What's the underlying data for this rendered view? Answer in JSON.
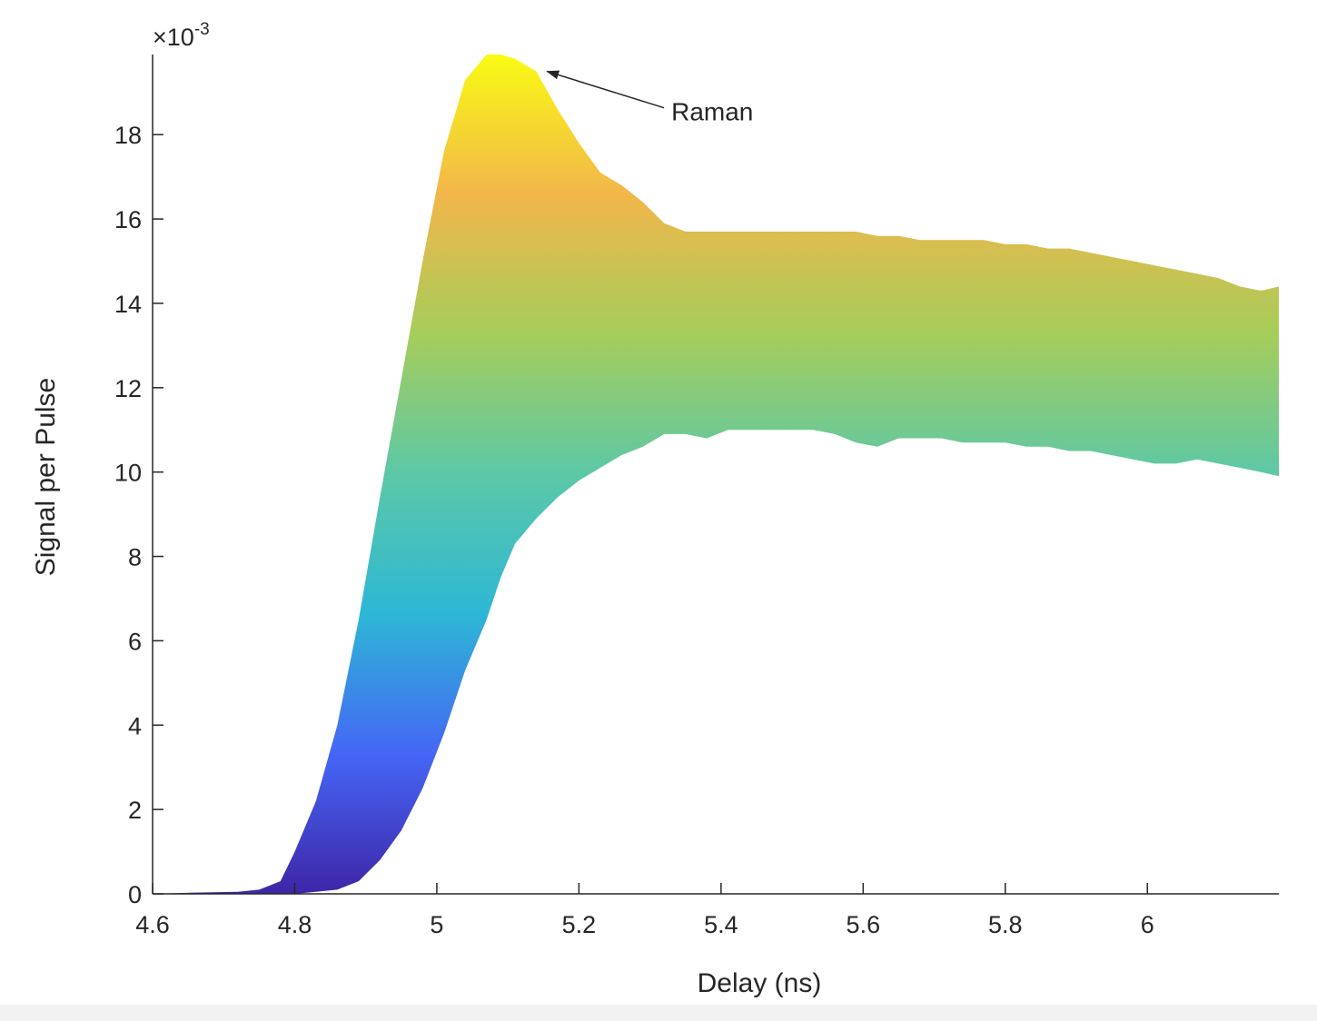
{
  "chart_data": {
    "type": "area",
    "title": "",
    "xlabel": "Delay (ns)",
    "ylabel": "Signal per Pulse",
    "y_multiplier_base": "10",
    "y_multiplier_exp": "-3",
    "xlim": [
      4.6,
      6.185
    ],
    "ylim": [
      0,
      0.0199
    ],
    "x_ticks": [
      4.6,
      4.8,
      5.0,
      5.2,
      5.4,
      5.6,
      5.8,
      6.0
    ],
    "x_tick_labels": [
      "4.6",
      "4.8",
      "5",
      "5.2",
      "5.4",
      "5.6",
      "5.8",
      "6"
    ],
    "y_ticks": [
      0,
      0.002,
      0.004,
      0.006,
      0.008,
      0.01,
      0.012,
      0.014,
      0.016,
      0.018
    ],
    "y_tick_labels": [
      "0",
      "2",
      "4",
      "6",
      "8",
      "10",
      "12",
      "14",
      "16",
      "18"
    ],
    "grid": false,
    "colormap": [
      "#3e26a8",
      "#4566f6",
      "#2db7d5",
      "#5cc8a7",
      "#a6cd5a",
      "#f2b64a",
      "#f9fb14"
    ],
    "upper": {
      "x": [
        4.6,
        4.66,
        4.72,
        4.75,
        4.78,
        4.8,
        4.83,
        4.86,
        4.89,
        4.92,
        4.95,
        4.98,
        5.01,
        5.04,
        5.07,
        5.09,
        5.11,
        5.14,
        5.17,
        5.2,
        5.23,
        5.26,
        5.29,
        5.32,
        5.35,
        5.38,
        5.41,
        5.44,
        5.47,
        5.5,
        5.53,
        5.56,
        5.59,
        5.62,
        5.65,
        5.68,
        5.71,
        5.74,
        5.77,
        5.8,
        5.83,
        5.86,
        5.89,
        5.92,
        5.95,
        5.98,
        6.01,
        6.04,
        6.07,
        6.1,
        6.13,
        6.16,
        6.185
      ],
      "y": [
        0.0,
        3e-05,
        5e-05,
        0.0001,
        0.0003,
        0.001,
        0.0022,
        0.004,
        0.0065,
        0.0094,
        0.0122,
        0.015,
        0.0176,
        0.0193,
        0.0199,
        0.0199,
        0.0198,
        0.0195,
        0.0186,
        0.0178,
        0.0171,
        0.0168,
        0.0164,
        0.0159,
        0.0157,
        0.0157,
        0.0157,
        0.0157,
        0.0157,
        0.0157,
        0.0157,
        0.0157,
        0.0157,
        0.0156,
        0.0156,
        0.0155,
        0.0155,
        0.0155,
        0.0155,
        0.0154,
        0.0154,
        0.0153,
        0.0153,
        0.0152,
        0.0151,
        0.015,
        0.0149,
        0.0148,
        0.0147,
        0.0146,
        0.0144,
        0.0143,
        0.0144
      ]
    },
    "lower": {
      "x": [
        4.6,
        4.66,
        4.72,
        4.75,
        4.78,
        4.8,
        4.83,
        4.86,
        4.89,
        4.92,
        4.95,
        4.98,
        5.01,
        5.04,
        5.07,
        5.09,
        5.11,
        5.14,
        5.17,
        5.2,
        5.23,
        5.26,
        5.29,
        5.32,
        5.35,
        5.38,
        5.41,
        5.44,
        5.47,
        5.5,
        5.53,
        5.56,
        5.59,
        5.62,
        5.65,
        5.68,
        5.71,
        5.74,
        5.77,
        5.8,
        5.83,
        5.86,
        5.89,
        5.92,
        5.95,
        5.98,
        6.01,
        6.04,
        6.07,
        6.1,
        6.13,
        6.16,
        6.185
      ],
      "y": [
        0.0,
        0.0,
        0.0,
        0.0,
        0.0,
        0.0,
        5e-05,
        0.0001,
        0.0003,
        0.0008,
        0.0015,
        0.0025,
        0.0038,
        0.0053,
        0.0065,
        0.0075,
        0.0083,
        0.0089,
        0.0094,
        0.0098,
        0.0101,
        0.0104,
        0.0106,
        0.0109,
        0.0109,
        0.0108,
        0.011,
        0.011,
        0.011,
        0.011,
        0.011,
        0.0109,
        0.0107,
        0.0106,
        0.0108,
        0.0108,
        0.0108,
        0.0107,
        0.0107,
        0.0107,
        0.0106,
        0.0106,
        0.0105,
        0.0105,
        0.0104,
        0.0103,
        0.0102,
        0.0102,
        0.0103,
        0.0102,
        0.0101,
        0.01,
        0.0099
      ]
    },
    "annotations": [
      {
        "text": "Raman",
        "x": 5.155,
        "y": 0.0195,
        "text_x": 5.33,
        "text_y": 0.01855
      }
    ]
  }
}
